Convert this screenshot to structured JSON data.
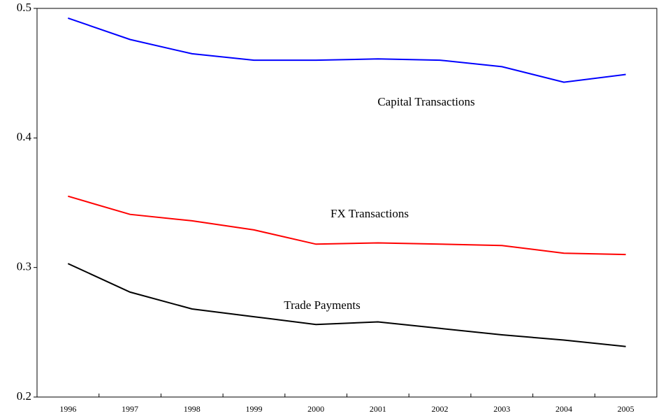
{
  "chart_data": {
    "type": "line",
    "categories": [
      "1996",
      "1997",
      "1998",
      "1999",
      "2000",
      "2001",
      "2002",
      "2003",
      "2004",
      "2005"
    ],
    "series": [
      {
        "name": "Capital Transactions",
        "color": "#0000ff",
        "values": [
          0.4925,
          0.476,
          0.465,
          0.46,
          0.46,
          0.461,
          0.46,
          0.455,
          0.443,
          0.449
        ]
      },
      {
        "name": "FX Transactions",
        "color": "#ff0000",
        "values": [
          0.355,
          0.341,
          0.336,
          0.329,
          0.318,
          0.319,
          0.318,
          0.317,
          0.311,
          0.31
        ]
      },
      {
        "name": "Trade Payments",
        "color": "#000000",
        "values": [
          0.303,
          0.281,
          0.268,
          0.262,
          0.256,
          0.258,
          0.253,
          0.248,
          0.244,
          0.239
        ]
      }
    ],
    "ylim": [
      0.2,
      0.5
    ],
    "yticks": [
      0.2,
      0.3,
      0.4,
      0.5
    ],
    "grid": false
  }
}
